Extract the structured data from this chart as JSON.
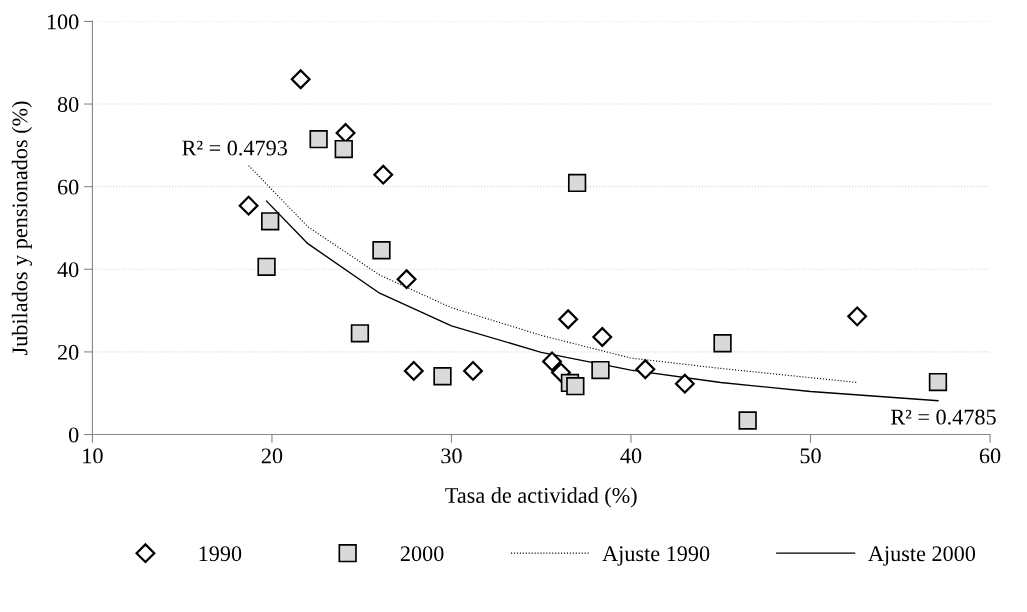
{
  "chart_data": {
    "type": "scatter",
    "xlabel": "Tasa de actividad (%)",
    "ylabel": "Jubilados y pensionados (%)",
    "xlim": [
      10,
      60
    ],
    "xticks": [
      10,
      20,
      30,
      40,
      50,
      60
    ],
    "ylim": [
      0,
      100
    ],
    "yticks": [
      0,
      20,
      40,
      60,
      80,
      100
    ],
    "grid": "y",
    "legend": "bottom",
    "series": [
      {
        "name": "1990",
        "marker": "diamond",
        "color": "#000000",
        "x": [
          21.6,
          24.1,
          26.2,
          18.7,
          27.5,
          27.9,
          31.2,
          35.6,
          36.1,
          36.5,
          38.4,
          40.8,
          43.0,
          52.6
        ],
        "values": [
          86.0,
          73.0,
          62.9,
          55.4,
          37.6,
          15.4,
          15.4,
          17.7,
          15.0,
          27.9,
          23.6,
          15.8,
          12.3,
          28.6
        ]
      },
      {
        "name": "2000",
        "marker": "square",
        "color": "#d9d9d9",
        "x": [
          22.6,
          24.0,
          19.9,
          19.7,
          26.1,
          24.9,
          29.5,
          36.6,
          36.9,
          38.3,
          37.0,
          45.1,
          46.5,
          57.1
        ],
        "values": [
          71.5,
          69.1,
          51.6,
          40.6,
          44.6,
          24.5,
          14.1,
          12.5,
          11.7,
          15.6,
          60.9,
          22.1,
          3.4,
          12.7
        ]
      },
      {
        "name": "Ajuste 1990",
        "type": "line",
        "line_style": "dotted",
        "color": "#000000",
        "x": [
          18.7,
          22,
          26,
          30,
          35,
          40,
          45,
          52.6
        ],
        "values": [
          65.1,
          50.3,
          38.6,
          30.7,
          24.0,
          18.5,
          16.0,
          12.6
        ]
      },
      {
        "name": "Ajuste 2000",
        "type": "line",
        "line_style": "solid",
        "color": "#000000",
        "x": [
          19.7,
          22,
          26,
          30,
          35,
          40,
          45,
          50,
          57.1
        ],
        "values": [
          56.5,
          46.2,
          34.2,
          26.3,
          19.9,
          15.6,
          12.6,
          10.4,
          8.2
        ]
      }
    ],
    "annotations": [
      "R² = 0.4793",
      "R² = 0.4785"
    ]
  }
}
